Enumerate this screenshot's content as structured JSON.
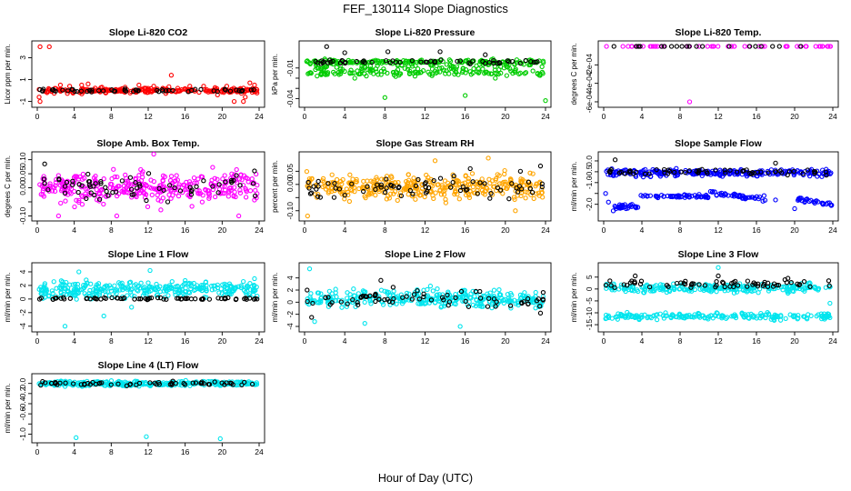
{
  "figure": {
    "title": "FEF_130114  Slope Diagnostics",
    "xlabel": "Hour of Day (UTC)"
  },
  "chart_data": [
    {
      "id": "co2",
      "type": "scatter",
      "title": "Slope Li-820 CO2",
      "ylabel": "Licor ppm per min.",
      "xlim": [
        0,
        24
      ],
      "ylim": [
        -1.2,
        4.2
      ],
      "xticks": [
        0,
        4,
        8,
        12,
        16,
        20,
        24
      ],
      "xtick_labels": [
        "0",
        "4",
        "8",
        "12",
        "16",
        "20",
        "24"
      ],
      "yticks": [
        -1,
        1,
        3
      ],
      "ytick_labels": [
        "-1",
        "1",
        "3"
      ],
      "series": [
        {
          "name": "all",
          "color": "#ff0000",
          "points": [
            [
              0.3,
              4
            ],
            [
              1.3,
              4
            ],
            [
              0.2,
              -0.6
            ],
            [
              0.3,
              -1
            ],
            [
              0.2,
              0.1
            ],
            [
              2.5,
              0.5
            ],
            [
              3.5,
              0.4
            ],
            [
              4.8,
              0.5
            ],
            [
              5.5,
              0.6
            ],
            [
              7,
              0.3
            ],
            [
              9.5,
              0.3
            ],
            [
              11,
              0.5
            ],
            [
              12,
              0.2
            ],
            [
              12.6,
              0.4
            ],
            [
              14.5,
              1.4
            ],
            [
              16.5,
              0.4
            ],
            [
              19.5,
              -0.4
            ],
            [
              21.3,
              -1
            ],
            [
              22.3,
              -1
            ],
            [
              23,
              0.7
            ],
            [
              23.5,
              0.5
            ],
            [
              22.5,
              -0.6
            ],
            [
              20.5,
              0.4
            ],
            [
              18,
              0.4
            ]
          ],
          "band": {
            "center": 0,
            "spread": 0.2,
            "n": 240,
            "seed": 11
          }
        },
        {
          "name": "subset",
          "color": "#000000",
          "points": [],
          "band": {
            "center": 0,
            "spread": 0.12,
            "n": 55,
            "seed": 12
          }
        }
      ]
    },
    {
      "id": "pressure",
      "type": "scatter",
      "title": "Slope Li-820 Pressure",
      "ylabel": "kPa per min.",
      "xlim": [
        0,
        24
      ],
      "ylim": [
        -0.045,
        0.013
      ],
      "xticks": [
        0,
        4,
        8,
        12,
        16,
        20,
        24
      ],
      "xtick_labels": [
        "0",
        "4",
        "8",
        "12",
        "16",
        "20",
        "24"
      ],
      "yticks": [
        -0.04,
        -0.03,
        -0.02,
        -0.01
      ],
      "ytick_labels": [
        "-0.04",
        "",
        "",
        "-0.01"
      ],
      "series": [
        {
          "name": "all",
          "color": "#00cc00",
          "points": [
            [
              8,
              -0.039
            ],
            [
              16,
              -0.037
            ],
            [
              24,
              -0.042
            ],
            [
              13,
              -0.013
            ],
            [
              5,
              -0.02
            ],
            [
              19,
              -0.02
            ],
            [
              11,
              -0.018
            ]
          ],
          "bands": [
            {
              "center": -0.004,
              "spread": 0.002,
              "n": 170,
              "seed": 21
            },
            {
              "center": -0.015,
              "spread": 0.0022,
              "n": 110,
              "seed": 22
            },
            {
              "center": -0.009,
              "spread": 0.004,
              "n": 90,
              "seed": 23
            }
          ]
        },
        {
          "name": "subset",
          "color": "#000000",
          "points": [
            [
              2.2,
              0.011
            ],
            [
              4,
              0.005
            ],
            [
              8.3,
              0.006
            ],
            [
              13.5,
              0.006
            ],
            [
              18,
              0.003
            ]
          ],
          "band": {
            "center": -0.004,
            "spread": 0.0018,
            "n": 55,
            "seed": 24
          }
        }
      ]
    },
    {
      "id": "temp",
      "type": "scatter",
      "title": "Slope Li-820 Temp.",
      "ylabel": "degrees C per min.",
      "xlim": [
        0,
        24
      ],
      "ylim": [
        -0.00062,
        2e-05
      ],
      "xticks": [
        0,
        4,
        8,
        12,
        16,
        20,
        24
      ],
      "xtick_labels": [
        "0",
        "4",
        "8",
        "12",
        "16",
        "20",
        "24"
      ],
      "yticks": [
        -0.0006,
        -0.0004,
        -0.0002
      ],
      "ytick_labels": [
        "-6e-04",
        "-4e-04",
        "-2e-04"
      ],
      "series": [
        {
          "name": "all",
          "color": "#ff00ff",
          "points": [
            [
              9,
              -0.0006
            ]
          ],
          "band": {
            "center": 0,
            "spread": 0,
            "n": 60,
            "seed": 31
          }
        },
        {
          "name": "subset",
          "color": "#000000",
          "points": [],
          "band": {
            "center": 0,
            "spread": 0,
            "n": 20,
            "seed": 32
          }
        }
      ]
    },
    {
      "id": "ambtemp",
      "type": "scatter",
      "title": "Slope Amb. Box Temp.",
      "ylabel": "degrees C per min.",
      "xlim": [
        0,
        24
      ],
      "ylim": [
        -0.105,
        0.115
      ],
      "xticks": [
        0,
        4,
        8,
        12,
        16,
        20,
        24
      ],
      "xtick_labels": [
        "0",
        "4",
        "8",
        "12",
        "16",
        "20",
        "24"
      ],
      "yticks": [
        -0.1,
        -0.05,
        0,
        0.05,
        0.1
      ],
      "ytick_labels": [
        "-0.10",
        "",
        "0.00",
        "0.05",
        "0.10"
      ],
      "series": [
        {
          "name": "all",
          "color": "#ff00ff",
          "points": [
            [
              12.6,
              0.12
            ],
            [
              21.8,
              -0.1
            ],
            [
              2.3,
              -0.1
            ],
            [
              8.6,
              -0.1
            ]
          ],
          "band": {
            "center": 0,
            "spread": 0.045,
            "n": 330,
            "seed": 41
          }
        },
        {
          "name": "subset",
          "color": "#000000",
          "points": [
            [
              0.8,
              0.085
            ],
            [
              11.8,
              -0.045
            ],
            [
              23.5,
              0.06
            ]
          ],
          "band": {
            "center": 0,
            "spread": 0.035,
            "n": 65,
            "seed": 42
          }
        }
      ]
    },
    {
      "id": "rh",
      "type": "scatter",
      "title": "Slope Gas Stream RH",
      "ylabel": "percent per min.",
      "xlim": [
        0,
        24
      ],
      "ylim": [
        -0.125,
        0.11
      ],
      "xticks": [
        0,
        4,
        8,
        12,
        16,
        20,
        24
      ],
      "xtick_labels": [
        "0",
        "4",
        "8",
        "12",
        "16",
        "20",
        "24"
      ],
      "yticks": [
        -0.1,
        -0.05,
        0,
        0.05
      ],
      "ytick_labels": [
        "-0.10",
        "",
        "0.00",
        "0.05"
      ],
      "series": [
        {
          "name": "all",
          "color": "#ffa500",
          "points": [
            [
              0.3,
              -0.12
            ],
            [
              21,
              -0.1
            ],
            [
              18.3,
              0.1
            ],
            [
              13,
              0.09
            ]
          ],
          "band": {
            "center": -0.01,
            "spread": 0.04,
            "n": 360,
            "seed": 51
          }
        },
        {
          "name": "subset",
          "color": "#000000",
          "points": [
            [
              23.5,
              0.07
            ],
            [
              16.5,
              0.06
            ],
            [
              21.5,
              0.05
            ]
          ],
          "band": {
            "center": -0.01,
            "spread": 0.03,
            "n": 70,
            "seed": 52
          }
        }
      ]
    },
    {
      "id": "sampleflow",
      "type": "scatter",
      "title": "Slope Sample Flow",
      "ylabel": "ml/min per min.",
      "xlim": [
        0,
        24
      ],
      "ylim": [
        -2.6,
        0.25
      ],
      "xticks": [
        0,
        4,
        8,
        12,
        16,
        20,
        24
      ],
      "xtick_labels": [
        "0",
        "4",
        "8",
        "12",
        "16",
        "20",
        "24"
      ],
      "yticks": [
        -2,
        -1.5,
        -1,
        -0.5,
        0
      ],
      "ytick_labels": [
        "-2.0",
        "",
        "-1.0",
        "-0.5",
        "0.0"
      ],
      "series": [
        {
          "name": "all",
          "color": "#0000ff",
          "points": [
            [
              0.2,
              -1.5
            ],
            [
              1,
              -2.3
            ],
            [
              0.5,
              -1.9
            ],
            [
              16.8,
              -1.6
            ],
            [
              18,
              -1.8
            ],
            [
              20,
              -2.2
            ]
          ],
          "band": {
            "center": -0.55,
            "spread": 0.13,
            "n": 260,
            "seed": 61
          },
          "segments": [
            {
              "x0": 1,
              "x1": 3.6,
              "y0": -2.15,
              "y1": -2.05,
              "spread": 0.08,
              "n": 28,
              "seed": 63
            },
            {
              "x0": 3.8,
              "x1": 11,
              "y0": -1.6,
              "y1": -1.65,
              "spread": 0.07,
              "n": 55,
              "seed": 64
            },
            {
              "x0": 11,
              "x1": 17,
              "y0": -1.45,
              "y1": -1.8,
              "spread": 0.08,
              "n": 45,
              "seed": 65
            },
            {
              "x0": 20,
              "x1": 24,
              "y0": -1.75,
              "y1": -2.0,
              "spread": 0.07,
              "n": 30,
              "seed": 66
            }
          ]
        },
        {
          "name": "subset",
          "color": "#000000",
          "points": [
            [
              1.2,
              0.05
            ],
            [
              18,
              -0.1
            ]
          ],
          "band": {
            "center": -0.5,
            "spread": 0.12,
            "n": 60,
            "seed": 62
          }
        }
      ]
    },
    {
      "id": "line1",
      "type": "scatter",
      "title": "Slope Line 1 Flow",
      "ylabel": "ml/min per min.",
      "xlim": [
        0,
        24
      ],
      "ylim": [
        -4.3,
        4.8
      ],
      "xticks": [
        0,
        4,
        8,
        12,
        16,
        20,
        24
      ],
      "xtick_labels": [
        "0",
        "4",
        "8",
        "12",
        "16",
        "20",
        "24"
      ],
      "yticks": [
        -4,
        -2,
        0,
        2,
        4
      ],
      "ytick_labels": [
        "-4",
        "-2",
        "0",
        "2",
        "4"
      ],
      "series": [
        {
          "name": "all",
          "color": "#00e5ee",
          "points": [
            [
              3,
              -4
            ],
            [
              4.5,
              4
            ],
            [
              12.2,
              4.2
            ],
            [
              7.2,
              -2.5
            ],
            [
              10.2,
              -1.2
            ],
            [
              23.5,
              3
            ]
          ],
          "band": {
            "center": 1.4,
            "spread": 1.0,
            "n": 320,
            "seed": 71
          }
        },
        {
          "name": "subset",
          "color": "#000000",
          "points": [],
          "band": {
            "center": 0.05,
            "spread": 0.15,
            "n": 70,
            "seed": 72
          }
        }
      ]
    },
    {
      "id": "line2",
      "type": "scatter",
      "title": "Slope Line 2 Flow",
      "ylabel": "ml/min per min.",
      "xlim": [
        0,
        24
      ],
      "ylim": [
        -4.3,
        5.9
      ],
      "xticks": [
        0,
        4,
        8,
        12,
        16,
        20,
        24
      ],
      "xtick_labels": [
        "0",
        "4",
        "8",
        "12",
        "16",
        "20",
        "24"
      ],
      "yticks": [
        -4,
        -2,
        0,
        2,
        4
      ],
      "ytick_labels": [
        "-4",
        "-2",
        "0",
        "2",
        "4"
      ],
      "series": [
        {
          "name": "all",
          "color": "#00e5ee",
          "points": [
            [
              0.5,
              5.5
            ],
            [
              1,
              -3.2
            ],
            [
              15.5,
              -4
            ],
            [
              6,
              -3.5
            ]
          ],
          "band": {
            "center": 0.6,
            "spread": 1.3,
            "n": 340,
            "seed": 81
          }
        },
        {
          "name": "subset",
          "color": "#000000",
          "points": [
            [
              7.6,
              3.6
            ],
            [
              0.7,
              -2.5
            ],
            [
              23.5,
              -1.8
            ]
          ],
          "band": {
            "center": 0.6,
            "spread": 1.1,
            "n": 70,
            "seed": 82
          }
        }
      ]
    },
    {
      "id": "line3",
      "type": "scatter",
      "title": "Slope Line 3 Flow",
      "ylabel": "ml/min per min.",
      "xlim": [
        0,
        24
      ],
      "ylim": [
        -16.5,
        9.5
      ],
      "xticks": [
        0,
        4,
        8,
        12,
        16,
        20,
        24
      ],
      "xtick_labels": [
        "0",
        "4",
        "8",
        "12",
        "16",
        "20",
        "24"
      ],
      "yticks": [
        -15,
        -10,
        -5,
        0,
        5
      ],
      "ytick_labels": [
        "-15",
        "-10",
        "-5",
        "0",
        "5"
      ],
      "series": [
        {
          "name": "all",
          "color": "#00e5ee",
          "points": [
            [
              12,
              9
            ],
            [
              16.2,
              -1.5
            ],
            [
              23.7,
              -6
            ]
          ],
          "bands": [
            {
              "center": 0.5,
              "spread": 1.5,
              "n": 240,
              "seed": 91
            },
            {
              "center": -11.5,
              "spread": 1.2,
              "n": 200,
              "seed": 92
            }
          ]
        },
        {
          "name": "subset",
          "color": "#000000",
          "points": [
            [
              3.3,
              5.5
            ],
            [
              12,
              5.5
            ],
            [
              19.3,
              4.5
            ]
          ],
          "band": {
            "center": 2,
            "spread": 1.3,
            "n": 65,
            "seed": 93
          }
        }
      ]
    },
    {
      "id": "line4",
      "type": "scatter",
      "title": "Slope Line 4 (LT) Flow",
      "ylabel": "ml/min per min.",
      "xlim": [
        0,
        24
      ],
      "ylim": [
        -1.1,
        0.12
      ],
      "xticks": [
        0,
        4,
        8,
        12,
        16,
        20,
        24
      ],
      "xtick_labels": [
        "0",
        "4",
        "8",
        "12",
        "16",
        "20",
        "24"
      ],
      "yticks": [
        -1,
        -0.8,
        -0.6,
        -0.4,
        -0.2,
        0
      ],
      "ytick_labels": [
        "-1.0",
        "",
        "-0.6",
        "-0.4",
        "-0.2",
        "0.0"
      ],
      "series": [
        {
          "name": "all",
          "color": "#00e5ee",
          "points": [
            [
              4.2,
              -1.07
            ],
            [
              11.8,
              -1.05
            ],
            [
              19.8,
              -1.09
            ]
          ],
          "band": {
            "center": 0,
            "spread": 0.04,
            "n": 320,
            "seed": 101
          }
        },
        {
          "name": "subset",
          "color": "#000000",
          "points": [],
          "band": {
            "center": 0,
            "spread": 0.03,
            "n": 60,
            "seed": 102
          }
        }
      ]
    }
  ]
}
